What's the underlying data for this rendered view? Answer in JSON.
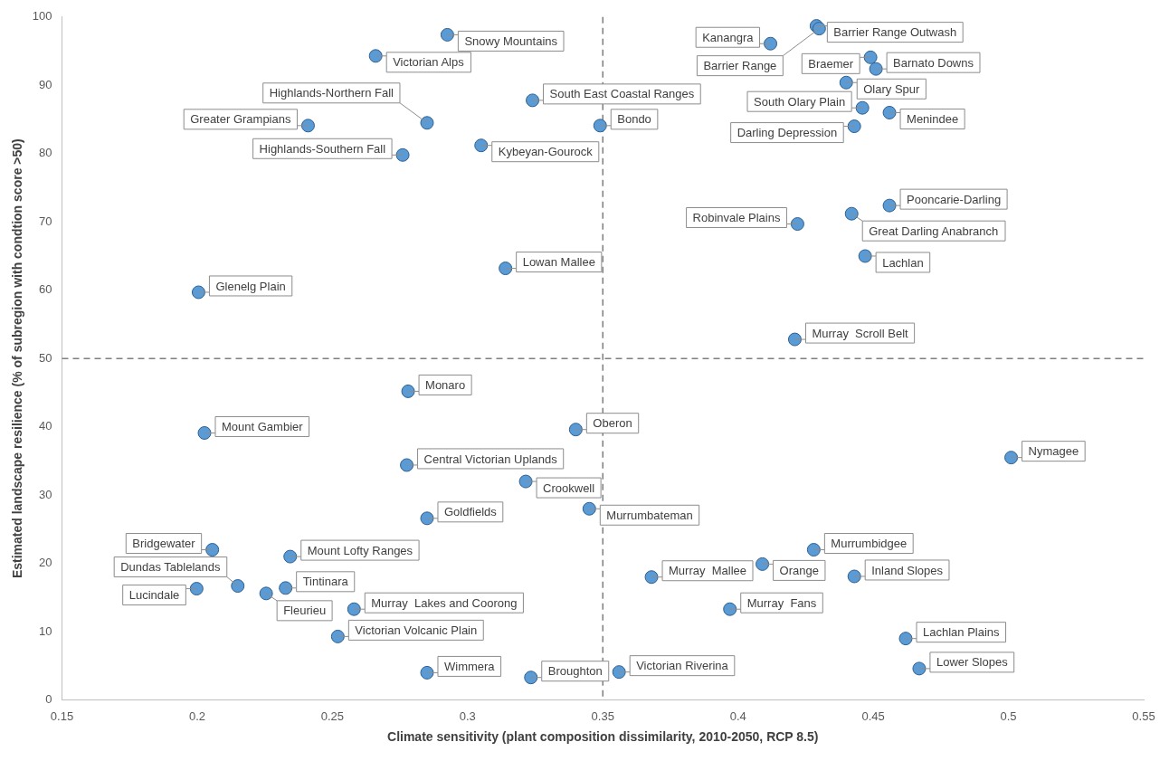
{
  "chart_data": {
    "type": "scatter",
    "xlabel": "Climate sensitivity (plant composition dissimilarity, 2010-2050, RCP 8.5)",
    "ylabel": "Estimated landscape resilience (% of subregion with condtion score >50)",
    "xlim": [
      0.15,
      0.55
    ],
    "xticks": [
      0.15,
      0.2,
      0.25,
      0.3,
      0.35,
      0.4,
      0.45,
      0.5,
      0.55
    ],
    "ylim": [
      0,
      100
    ],
    "yticks": [
      0,
      10,
      20,
      30,
      40,
      50,
      60,
      70,
      80,
      90,
      100
    ],
    "grid": false,
    "legend": false,
    "marker": "circle",
    "ref_lines": [
      {
        "axis": "x",
        "value": 0.35,
        "color": "#7f7f7f",
        "line_style": "dashed"
      },
      {
        "axis": "y",
        "value": 50,
        "color": "#7f7f7f",
        "line_style": "dashed"
      }
    ],
    "series": [
      {
        "color": "#5b9bd5",
        "x": [
          0.2925,
          0.266,
          0.241,
          0.324,
          0.285,
          0.349,
          0.305,
          0.276,
          0.314,
          0.2005,
          0.429,
          0.43,
          0.412,
          0.449,
          0.451,
          0.44,
          0.446,
          0.456,
          0.443,
          0.456,
          0.442,
          0.422,
          0.447,
          0.421,
          0.278,
          0.2027,
          0.34,
          0.2775,
          0.3215,
          0.345,
          0.285,
          0.2056,
          0.2344,
          0.215,
          0.1998,
          0.2255,
          0.2327,
          0.258,
          0.252,
          0.285,
          0.3234,
          0.501,
          0.368,
          0.409,
          0.428,
          0.443,
          0.397,
          0.462,
          0.467,
          0.356
        ],
        "values": [
          97.4,
          94.3,
          84.1,
          87.8,
          84.5,
          84.1,
          81.2,
          79.8,
          63.2,
          59.7,
          98.7,
          98.3,
          96.1,
          94.1,
          92.4,
          90.4,
          86.7,
          86.0,
          84.0,
          72.4,
          71.2,
          69.7,
          65.0,
          52.8,
          45.2,
          39.1,
          39.6,
          34.4,
          32.0,
          28.0,
          26.6,
          22.0,
          21.0,
          16.7,
          16.3,
          15.6,
          16.4,
          13.3,
          9.3,
          4.0,
          3.3,
          35.5,
          18.0,
          19.9,
          22.0,
          18.1,
          13.3,
          9.0,
          4.6,
          4.1
        ]
      }
    ],
    "annotations": [
      {
        "text": "Snowy Mountains",
        "x": 0.2925,
        "y": 97.4
      },
      {
        "text": "Victorian Alps",
        "x": 0.266,
        "y": 94.3
      },
      {
        "text": "Greater Grampians",
        "x": 0.241,
        "y": 84.1
      },
      {
        "text": "South East Coastal Ranges",
        "x": 0.324,
        "y": 87.8
      },
      {
        "text": "Highlands-Northern Fall",
        "x": 0.285,
        "y": 84.5
      },
      {
        "text": "Bondo",
        "x": 0.349,
        "y": 84.1
      },
      {
        "text": "Kybeyan-Gourock",
        "x": 0.305,
        "y": 81.2
      },
      {
        "text": "Highlands-Southern Fall",
        "x": 0.276,
        "y": 79.8
      },
      {
        "text": "Lowan Mallee",
        "x": 0.314,
        "y": 63.2
      },
      {
        "text": "Glenelg Plain",
        "x": 0.2005,
        "y": 59.7
      },
      {
        "text": "Barrier Range Outwash",
        "x": 0.429,
        "y": 98.7
      },
      {
        "text": "Barrier Range",
        "x": 0.43,
        "y": 98.3
      },
      {
        "text": "Kanangra",
        "x": 0.412,
        "y": 96.1
      },
      {
        "text": "Braemer",
        "x": 0.449,
        "y": 94.1
      },
      {
        "text": "Barnato Downs",
        "x": 0.451,
        "y": 92.4
      },
      {
        "text": "Olary Spur",
        "x": 0.44,
        "y": 90.4
      },
      {
        "text": "South Olary Plain",
        "x": 0.446,
        "y": 86.7
      },
      {
        "text": "Menindee",
        "x": 0.456,
        "y": 86.0
      },
      {
        "text": "Darling Depression",
        "x": 0.443,
        "y": 84.0
      },
      {
        "text": "Pooncarie-Darling",
        "x": 0.456,
        "y": 72.4
      },
      {
        "text": "Great Darling Anabranch",
        "x": 0.442,
        "y": 71.2
      },
      {
        "text": "Robinvale Plains",
        "x": 0.422,
        "y": 69.7
      },
      {
        "text": "Lachlan",
        "x": 0.447,
        "y": 65.0
      },
      {
        "text": "Murray  Scroll Belt",
        "x": 0.421,
        "y": 52.8
      },
      {
        "text": "Monaro",
        "x": 0.278,
        "y": 45.2
      },
      {
        "text": "Mount Gambier",
        "x": 0.2027,
        "y": 39.1
      },
      {
        "text": "Oberon",
        "x": 0.34,
        "y": 39.6
      },
      {
        "text": "Central Victorian Uplands",
        "x": 0.2775,
        "y": 34.4
      },
      {
        "text": "Crookwell",
        "x": 0.3215,
        "y": 32.0
      },
      {
        "text": "Murrumbateman",
        "x": 0.345,
        "y": 28.0
      },
      {
        "text": "Goldfields",
        "x": 0.285,
        "y": 26.6
      },
      {
        "text": "Bridgewater",
        "x": 0.2056,
        "y": 22.0
      },
      {
        "text": "Mount Lofty Ranges",
        "x": 0.2344,
        "y": 21.0
      },
      {
        "text": "Dundas Tablelands",
        "x": 0.215,
        "y": 16.7
      },
      {
        "text": "Lucindale",
        "x": 0.1998,
        "y": 16.3
      },
      {
        "text": "Fleurieu",
        "x": 0.2255,
        "y": 15.6
      },
      {
        "text": "Tintinara",
        "x": 0.2327,
        "y": 16.4
      },
      {
        "text": "Murray  Lakes and Coorong",
        "x": 0.258,
        "y": 13.3
      },
      {
        "text": "Victorian Volcanic Plain",
        "x": 0.252,
        "y": 9.3
      },
      {
        "text": "Wimmera",
        "x": 0.285,
        "y": 4.0
      },
      {
        "text": "Broughton",
        "x": 0.3234,
        "y": 3.3
      },
      {
        "text": "Nymagee",
        "x": 0.501,
        "y": 35.5
      },
      {
        "text": "Murray  Mallee",
        "x": 0.368,
        "y": 18.0
      },
      {
        "text": "Orange",
        "x": 0.409,
        "y": 19.9
      },
      {
        "text": "Murrumbidgee",
        "x": 0.428,
        "y": 22.0
      },
      {
        "text": "Inland Slopes",
        "x": 0.443,
        "y": 18.1
      },
      {
        "text": "Murray  Fans",
        "x": 0.397,
        "y": 13.3
      },
      {
        "text": "Lachlan Plains",
        "x": 0.462,
        "y": 9.0
      },
      {
        "text": "Lower Slopes",
        "x": 0.467,
        "y": 4.6
      },
      {
        "text": "Victorian Riverina",
        "x": 0.356,
        "y": 4.1
      }
    ]
  }
}
